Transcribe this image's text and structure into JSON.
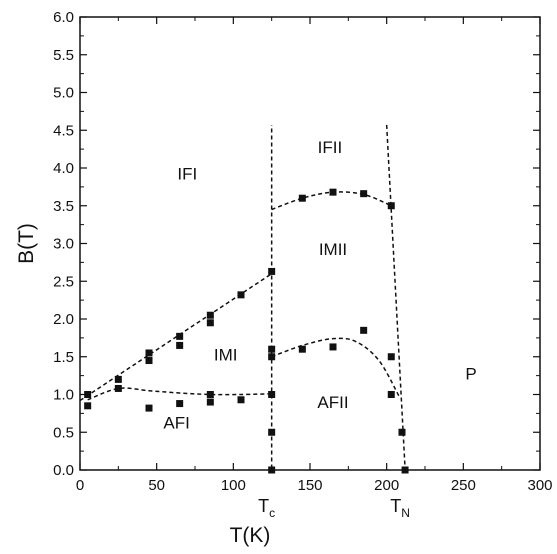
{
  "chart_data": {
    "type": "scatter",
    "title": "",
    "xlabel": "T(K)",
    "ylabel": "B(T)",
    "xlim": [
      0,
      300
    ],
    "ylim": [
      0.0,
      6.0
    ],
    "x_ticks": [
      0,
      50,
      100,
      150,
      200,
      250,
      300
    ],
    "y_ticks": [
      "0.0",
      "0.5",
      "1.0",
      "1.5",
      "2.0",
      "2.5",
      "3.0",
      "3.5",
      "4.0",
      "4.5",
      "5.0",
      "5.5",
      "6.0"
    ],
    "grid": false,
    "legend": "none",
    "marker_color": "#111111",
    "points": [
      {
        "x": 5,
        "y": 1.0
      },
      {
        "x": 5,
        "y": 0.85
      },
      {
        "x": 25,
        "y": 1.2
      },
      {
        "x": 25,
        "y": 1.08
      },
      {
        "x": 45,
        "y": 1.55
      },
      {
        "x": 45,
        "y": 1.45
      },
      {
        "x": 45,
        "y": 0.82
      },
      {
        "x": 65,
        "y": 1.77
      },
      {
        "x": 65,
        "y": 1.65
      },
      {
        "x": 65,
        "y": 0.88
      },
      {
        "x": 85,
        "y": 2.05
      },
      {
        "x": 85,
        "y": 1.95
      },
      {
        "x": 85,
        "y": 1.0
      },
      {
        "x": 85,
        "y": 0.9
      },
      {
        "x": 105,
        "y": 2.32
      },
      {
        "x": 105,
        "y": 0.93
      },
      {
        "x": 125,
        "y": 2.63
      },
      {
        "x": 125,
        "y": 1.6
      },
      {
        "x": 125,
        "y": 1.5
      },
      {
        "x": 125,
        "y": 1.0
      },
      {
        "x": 125,
        "y": 0.5
      },
      {
        "x": 125,
        "y": 0.0
      },
      {
        "x": 145,
        "y": 3.6
      },
      {
        "x": 145,
        "y": 1.6
      },
      {
        "x": 165,
        "y": 3.68
      },
      {
        "x": 165,
        "y": 1.63
      },
      {
        "x": 185,
        "y": 3.66
      },
      {
        "x": 185,
        "y": 1.85
      },
      {
        "x": 203,
        "y": 3.5
      },
      {
        "x": 203,
        "y": 1.5
      },
      {
        "x": 203,
        "y": 1.0
      },
      {
        "x": 210,
        "y": 0.5
      },
      {
        "x": 212,
        "y": 0.0
      }
    ],
    "boundaries": [
      {
        "style": "dashed",
        "points": [
          [
            0,
            0.92
          ],
          [
            125,
            2.6
          ]
        ]
      },
      {
        "style": "dashed",
        "points": [
          [
            125,
            0.02
          ],
          [
            125,
            4.57
          ]
        ]
      },
      {
        "style": "dashed",
        "points": [
          [
            200,
            4.57
          ],
          [
            212,
            0.02
          ]
        ]
      },
      {
        "style": "dashed",
        "points": [
          [
            125,
            3.45
          ],
          [
            145,
            3.6
          ],
          [
            165,
            3.68
          ],
          [
            185,
            3.65
          ],
          [
            203,
            3.5
          ]
        ]
      },
      {
        "style": "dashed",
        "points": [
          [
            125,
            1.5
          ],
          [
            145,
            1.65
          ],
          [
            165,
            1.74
          ],
          [
            180,
            1.7
          ],
          [
            195,
            1.45
          ],
          [
            208,
            0.98
          ]
        ]
      },
      {
        "style": "dashed",
        "points": [
          [
            5,
            0.93
          ],
          [
            25,
            1.08
          ],
          [
            45,
            1.05
          ],
          [
            65,
            1.02
          ],
          [
            85,
            1.0
          ],
          [
            105,
            1.0
          ],
          [
            125,
            1.01
          ]
        ]
      }
    ],
    "regions": [
      {
        "label": "IFI",
        "x": 70,
        "y": 3.85
      },
      {
        "label": "IFII",
        "x": 163,
        "y": 4.2
      },
      {
        "label": "IMII",
        "x": 165,
        "y": 2.85
      },
      {
        "label": "IMI",
        "x": 95,
        "y": 1.45
      },
      {
        "label": "AFII",
        "x": 165,
        "y": 0.82
      },
      {
        "label": "AFI",
        "x": 63,
        "y": 0.55
      },
      {
        "label": "P",
        "x": 255,
        "y": 1.2
      }
    ],
    "annotations": [
      {
        "main": "T",
        "sub": "c",
        "x": 125
      },
      {
        "main": "T",
        "sub": "N",
        "x": 212
      }
    ]
  }
}
